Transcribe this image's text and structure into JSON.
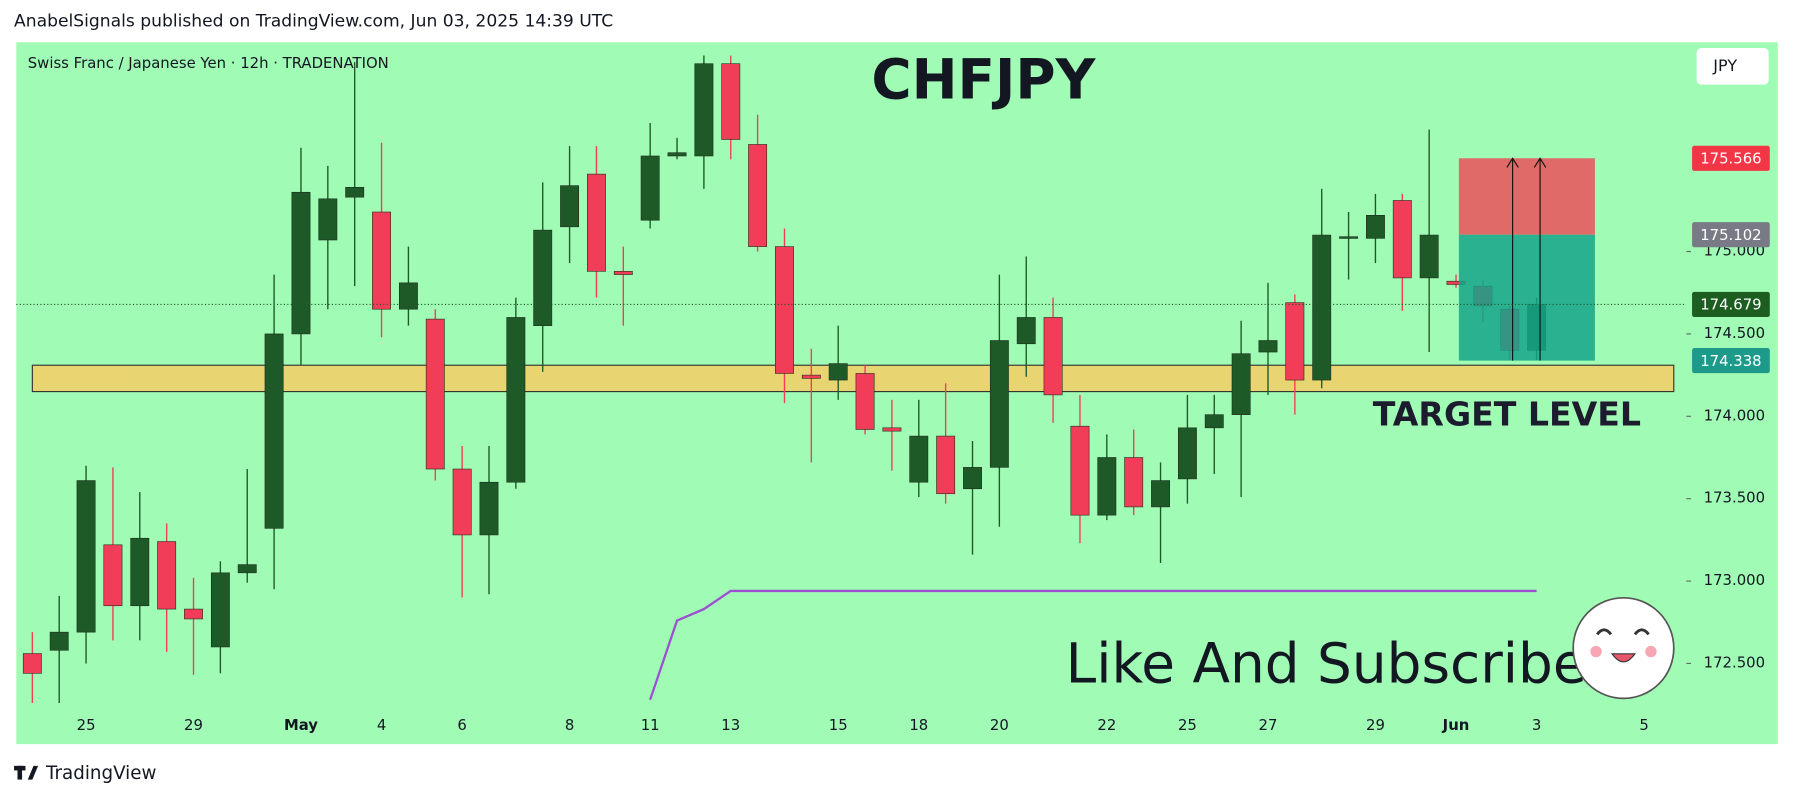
{
  "header": {
    "text": "AnabelSignals published on TradingView.com, Jun 03, 2025 14:39 UTC"
  },
  "footer": {
    "brand": "TradingView"
  },
  "chart_data": {
    "type": "candlestick",
    "title": "CHFJPY",
    "subtitle": "Swiss Franc / Japanese Yen · 12h · TRADENATION",
    "currency": "JPY",
    "categories": [
      null,
      null,
      "25",
      null,
      null,
      null,
      "29",
      null,
      null,
      null,
      "May",
      null,
      null,
      "4",
      null,
      null,
      "6",
      null,
      null,
      null,
      "8",
      null,
      null,
      "11",
      null,
      null,
      "13",
      null,
      null,
      null,
      "15",
      null,
      null,
      "18",
      null,
      null,
      "20",
      null,
      null,
      null,
      "22",
      null,
      null,
      "25",
      null,
      null,
      "27",
      null,
      null,
      null,
      "29",
      null,
      null,
      "Jun",
      null,
      null,
      "3",
      null,
      null,
      null,
      "5"
    ],
    "open": [
      172.56,
      172.58,
      172.69,
      173.22,
      172.85,
      173.24,
      172.83,
      172.6,
      173.05,
      173.32,
      174.5,
      175.07,
      175.33,
      175.24,
      174.65,
      174.59,
      173.68,
      173.28,
      173.6,
      174.55,
      175.15,
      175.47,
      174.88,
      175.19,
      175.58,
      175.58,
      176.14,
      175.65,
      175.03,
      174.25,
      174.22,
      174.26,
      173.93,
      173.6,
      173.88,
      173.56,
      173.69,
      174.44,
      174.6,
      173.94,
      173.4,
      173.75,
      173.45,
      173.62,
      173.93,
      174.01,
      174.39,
      174.69,
      174.22,
      175.08,
      175.08,
      175.31,
      174.84,
      174.82,
      174.79,
      174.65,
      174.4,
      null,
      null,
      null,
      null
    ],
    "high": [
      172.69,
      172.91,
      173.7,
      173.69,
      173.54,
      173.35,
      173.02,
      173.12,
      173.68,
      174.86,
      175.63,
      175.52,
      176.15,
      175.66,
      175.03,
      174.65,
      173.82,
      173.82,
      174.72,
      175.42,
      175.64,
      175.64,
      175.03,
      175.78,
      175.69,
      176.19,
      176.19,
      175.83,
      175.14,
      174.41,
      174.55,
      174.31,
      174.1,
      174.1,
      174.2,
      173.85,
      174.86,
      174.97,
      174.72,
      174.13,
      173.89,
      173.92,
      173.72,
      174.13,
      174.13,
      174.58,
      174.81,
      174.74,
      175.38,
      175.24,
      175.35,
      175.35,
      175.74,
      174.86,
      174.83,
      174.67,
      174.72,
      null,
      null,
      null,
      null
    ],
    "low": [
      172.26,
      172.26,
      172.5,
      172.64,
      172.64,
      172.57,
      172.43,
      172.44,
      172.99,
      172.95,
      174.31,
      174.65,
      174.79,
      174.48,
      174.55,
      173.61,
      172.9,
      172.92,
      173.56,
      174.27,
      174.93,
      174.72,
      174.55,
      175.14,
      175.56,
      175.38,
      175.56,
      175.0,
      174.08,
      173.72,
      174.1,
      173.89,
      173.67,
      173.51,
      173.47,
      173.16,
      173.33,
      174.24,
      173.96,
      173.23,
      173.37,
      173.4,
      173.11,
      173.47,
      173.65,
      173.51,
      174.13,
      174.01,
      174.17,
      174.83,
      174.93,
      174.64,
      174.39,
      174.78,
      174.57,
      174.34,
      174.34,
      null,
      null,
      null,
      null
    ],
    "close": [
      172.44,
      172.69,
      173.61,
      172.85,
      173.26,
      172.83,
      172.77,
      173.05,
      173.1,
      174.5,
      175.36,
      175.32,
      175.39,
      174.65,
      174.81,
      173.68,
      173.28,
      173.6,
      174.6,
      175.13,
      175.4,
      174.88,
      174.86,
      175.58,
      175.6,
      176.14,
      175.68,
      175.03,
      174.26,
      174.23,
      174.32,
      173.92,
      173.91,
      173.88,
      173.53,
      173.69,
      174.46,
      174.6,
      174.13,
      173.4,
      173.75,
      173.45,
      173.61,
      173.93,
      174.01,
      174.38,
      174.46,
      174.22,
      175.1,
      175.09,
      175.22,
      174.84,
      175.1,
      174.8,
      174.67,
      174.4,
      174.679,
      null,
      null,
      null,
      null
    ],
    "up_color": "#1e5a28",
    "down_color": "#f23d58",
    "indicator": {
      "color": "#9c4fd0",
      "values": [
        null,
        null,
        null,
        null,
        null,
        null,
        null,
        null,
        null,
        null,
        null,
        null,
        null,
        null,
        null,
        null,
        null,
        null,
        null,
        null,
        null,
        null,
        null,
        172.28,
        172.76,
        172.83,
        172.94,
        172.94,
        172.94,
        172.94,
        172.94,
        172.94,
        172.94,
        172.94,
        172.94,
        172.94,
        172.94,
        172.94,
        172.94,
        172.94,
        172.94,
        172.94,
        172.94,
        172.94,
        172.94,
        172.94,
        172.94,
        172.94,
        172.94,
        172.94,
        172.94,
        172.94,
        172.94,
        172.94,
        172.94,
        172.94,
        172.94,
        null,
        null,
        null,
        null
      ]
    },
    "ylim": [
      172.26,
      176.27
    ],
    "yticks": [
      {
        "value": 172.5,
        "label": "172.500"
      },
      {
        "value": 173,
        "label": "173.000"
      },
      {
        "value": 173.5,
        "label": "173.500"
      },
      {
        "value": 174,
        "label": "174.000"
      },
      {
        "value": 174.5,
        "label": "174.500"
      },
      {
        "value": 175,
        "label": "175.000"
      }
    ],
    "zone": {
      "low": 174.15,
      "high": 174.31,
      "label": "TARGET LEVEL",
      "color": "#f2d06b"
    },
    "position": {
      "stop": 175.566,
      "entry": 175.102,
      "target": 174.338
    },
    "annotation": "Like And Subscribe"
  }
}
